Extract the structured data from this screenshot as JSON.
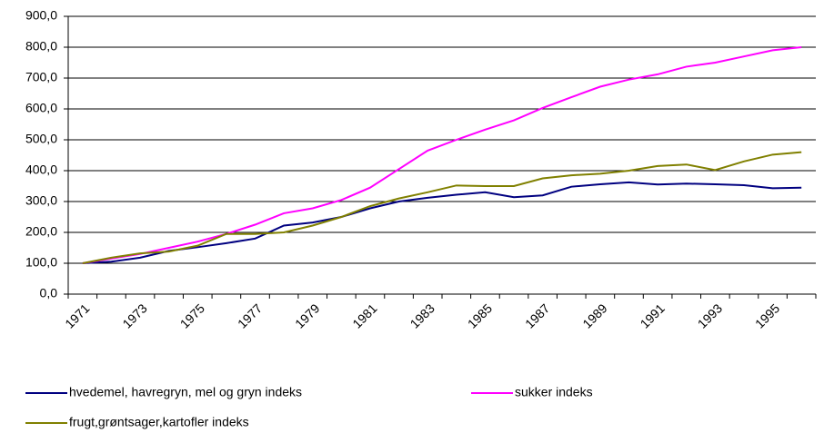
{
  "chart_data": {
    "type": "line",
    "categories": [
      "1971",
      null,
      "1973",
      null,
      "1975",
      null,
      "1977",
      null,
      "1979",
      null,
      "1981",
      null,
      "1983",
      null,
      "1985",
      null,
      "1987",
      null,
      "1989",
      null,
      "1991",
      null,
      "1993",
      null,
      "1995",
      null
    ],
    "series": [
      {
        "name": "hvedemel, havregryn, mel og gryn indeks",
        "color": "#000080",
        "values": [
          100,
          105,
          118,
          140,
          152,
          165,
          180,
          222,
          232,
          250,
          278,
          300,
          312,
          322,
          330,
          314,
          320,
          348,
          356,
          362,
          355,
          358,
          356,
          353,
          343,
          345
        ]
      },
      {
        "name": "sukker indeks",
        "color": "#ff00ff",
        "values": [
          100,
          115,
          130,
          150,
          170,
          195,
          225,
          262,
          278,
          305,
          345,
          405,
          465,
          500,
          533,
          563,
          603,
          638,
          672,
          695,
          712,
          737,
          750,
          770,
          790,
          800
        ]
      },
      {
        "name": "frugt,grøntsager,kartofler indeks",
        "color": "#808000",
        "values": [
          100,
          118,
          132,
          138,
          157,
          195,
          195,
          200,
          222,
          250,
          285,
          310,
          330,
          352,
          350,
          350,
          375,
          385,
          390,
          400,
          415,
          420,
          402,
          430,
          452,
          460
        ]
      }
    ],
    "ylim": [
      0,
      900
    ],
    "yticks": [
      {
        "value": 0,
        "label": "0,0"
      },
      {
        "value": 100,
        "label": "100,0"
      },
      {
        "value": 200,
        "label": "200,0"
      },
      {
        "value": 300,
        "label": "300,0"
      },
      {
        "value": 400,
        "label": "400,0"
      },
      {
        "value": 500,
        "label": "500,0"
      },
      {
        "value": 600,
        "label": "600,0"
      },
      {
        "value": 700,
        "label": "700,0"
      },
      {
        "value": 800,
        "label": "800,0"
      },
      {
        "value": 900,
        "label": "900,0"
      }
    ],
    "grid": true
  }
}
